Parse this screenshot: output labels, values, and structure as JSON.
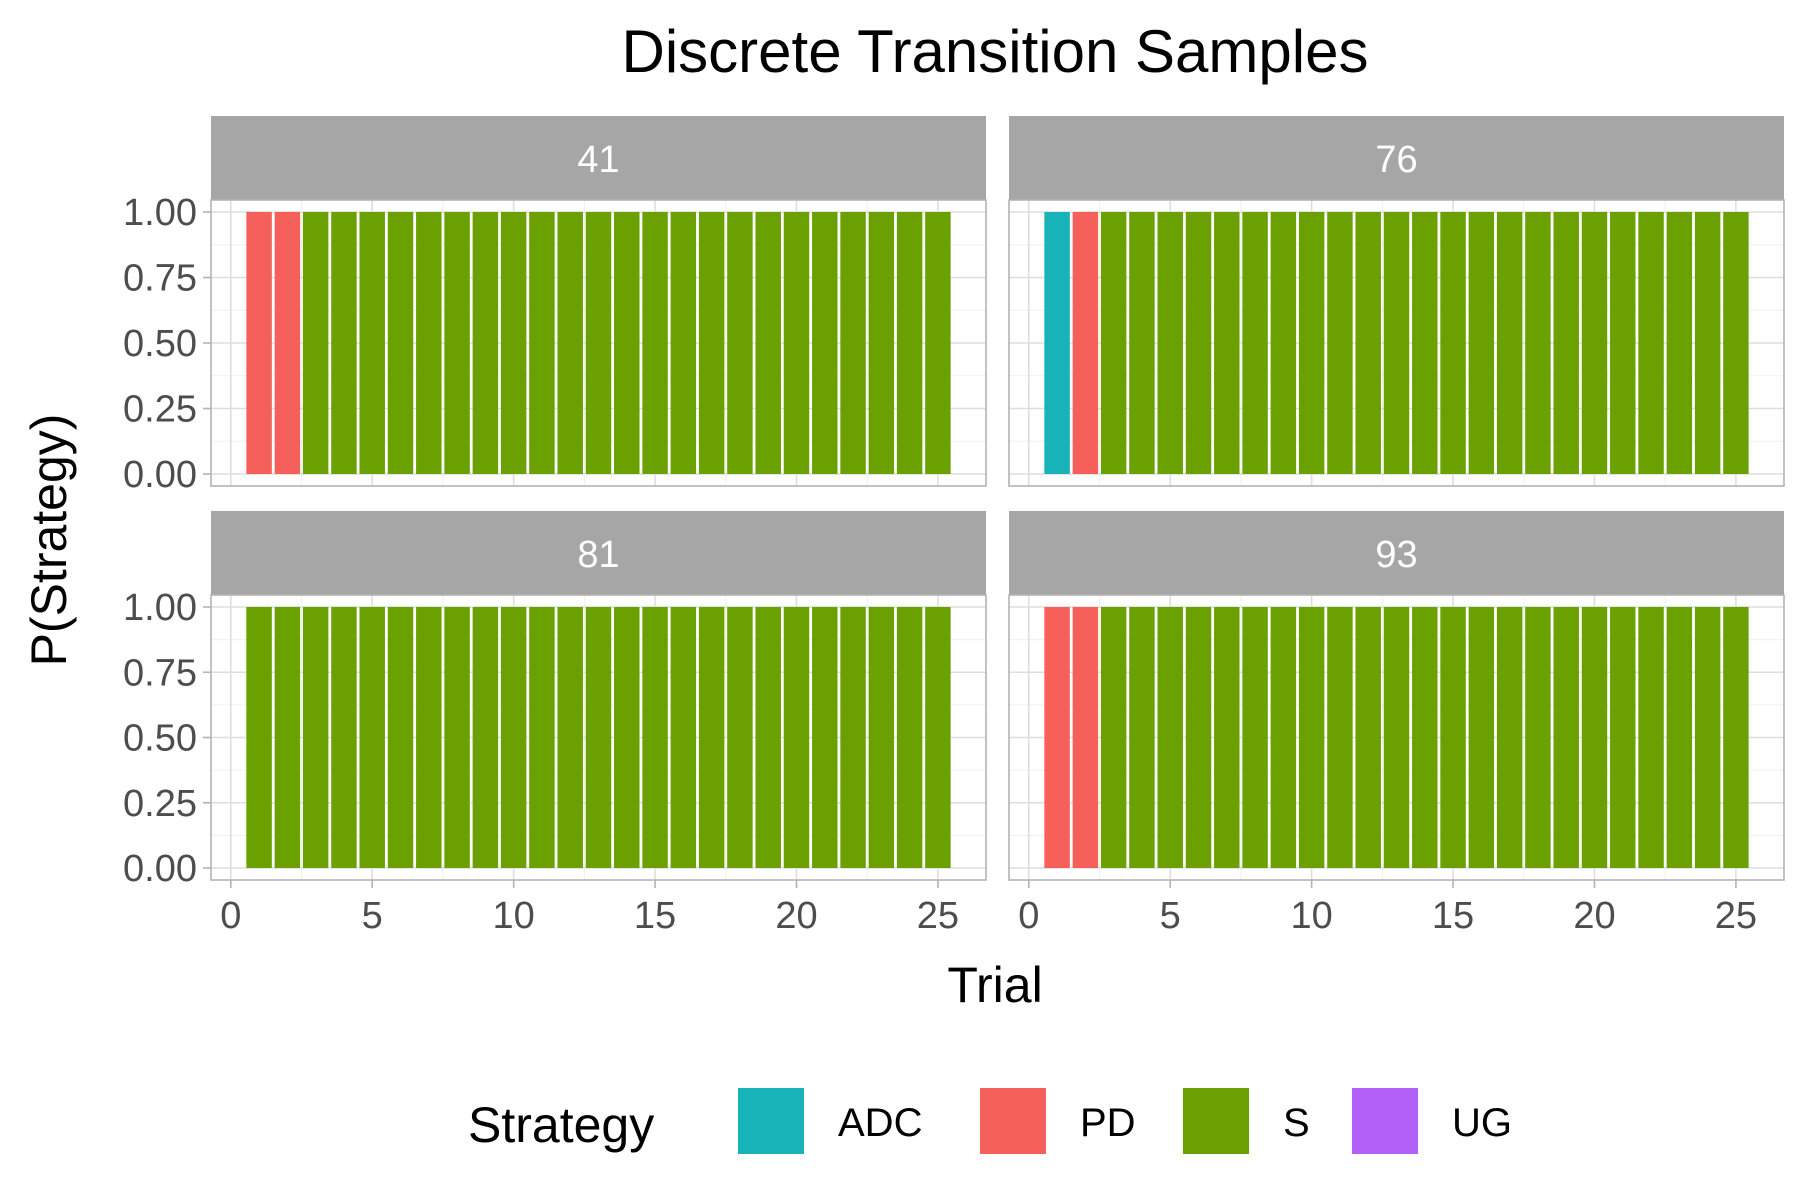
{
  "chart_data": {
    "type": "bar",
    "stacked": true,
    "title": "Discrete Transition Samples",
    "xlabel": "Trial",
    "ylabel": "P(Strategy)",
    "xlim": [
      0,
      26
    ],
    "ylim": [
      0,
      1
    ],
    "x_ticks": [
      0,
      5,
      10,
      15,
      20,
      25
    ],
    "y_ticks": [
      "0.00",
      "0.25",
      "0.50",
      "0.75",
      "1.00"
    ],
    "grid": true,
    "facet_layout": "2x2",
    "legend": {
      "title": "Strategy",
      "position": "bottom",
      "entries": [
        {
          "name": "ADC",
          "color": "#17b3b8"
        },
        {
          "name": "PD",
          "color": "#f5605a"
        },
        {
          "name": "S",
          "color": "#6aa100"
        },
        {
          "name": "UG",
          "color": "#b260f7"
        }
      ]
    },
    "panels": [
      {
        "label": "41",
        "trials": [
          1,
          2,
          3,
          4,
          5,
          6,
          7,
          8,
          9,
          10,
          11,
          12,
          13,
          14,
          15,
          16,
          17,
          18,
          19,
          20,
          21,
          22,
          23,
          24,
          25
        ],
        "strategy": [
          "PD",
          "PD",
          "S",
          "S",
          "S",
          "S",
          "S",
          "S",
          "S",
          "S",
          "S",
          "S",
          "S",
          "S",
          "S",
          "S",
          "S",
          "S",
          "S",
          "S",
          "S",
          "S",
          "S",
          "S",
          "S"
        ],
        "probability": [
          1,
          1,
          1,
          1,
          1,
          1,
          1,
          1,
          1,
          1,
          1,
          1,
          1,
          1,
          1,
          1,
          1,
          1,
          1,
          1,
          1,
          1,
          1,
          1,
          1
        ]
      },
      {
        "label": "76",
        "trials": [
          1,
          2,
          3,
          4,
          5,
          6,
          7,
          8,
          9,
          10,
          11,
          12,
          13,
          14,
          15,
          16,
          17,
          18,
          19,
          20,
          21,
          22,
          23,
          24,
          25
        ],
        "strategy": [
          "ADC",
          "PD",
          "S",
          "S",
          "S",
          "S",
          "S",
          "S",
          "S",
          "S",
          "S",
          "S",
          "S",
          "S",
          "S",
          "S",
          "S",
          "S",
          "S",
          "S",
          "S",
          "S",
          "S",
          "S",
          "S"
        ],
        "probability": [
          1,
          1,
          1,
          1,
          1,
          1,
          1,
          1,
          1,
          1,
          1,
          1,
          1,
          1,
          1,
          1,
          1,
          1,
          1,
          1,
          1,
          1,
          1,
          1,
          1
        ]
      },
      {
        "label": "81",
        "trials": [
          1,
          2,
          3,
          4,
          5,
          6,
          7,
          8,
          9,
          10,
          11,
          12,
          13,
          14,
          15,
          16,
          17,
          18,
          19,
          20,
          21,
          22,
          23,
          24,
          25
        ],
        "strategy": [
          "S",
          "S",
          "S",
          "S",
          "S",
          "S",
          "S",
          "S",
          "S",
          "S",
          "S",
          "S",
          "S",
          "S",
          "S",
          "S",
          "S",
          "S",
          "S",
          "S",
          "S",
          "S",
          "S",
          "S",
          "S"
        ],
        "probability": [
          1,
          1,
          1,
          1,
          1,
          1,
          1,
          1,
          1,
          1,
          1,
          1,
          1,
          1,
          1,
          1,
          1,
          1,
          1,
          1,
          1,
          1,
          1,
          1,
          1
        ]
      },
      {
        "label": "93",
        "trials": [
          1,
          2,
          3,
          4,
          5,
          6,
          7,
          8,
          9,
          10,
          11,
          12,
          13,
          14,
          15,
          16,
          17,
          18,
          19,
          20,
          21,
          22,
          23,
          24,
          25
        ],
        "strategy": [
          "PD",
          "PD",
          "S",
          "S",
          "S",
          "S",
          "S",
          "S",
          "S",
          "S",
          "S",
          "S",
          "S",
          "S",
          "S",
          "S",
          "S",
          "S",
          "S",
          "S",
          "S",
          "S",
          "S",
          "S",
          "S"
        ],
        "probability": [
          1,
          1,
          1,
          1,
          1,
          1,
          1,
          1,
          1,
          1,
          1,
          1,
          1,
          1,
          1,
          1,
          1,
          1,
          1,
          1,
          1,
          1,
          1,
          1,
          1
        ]
      }
    ]
  }
}
